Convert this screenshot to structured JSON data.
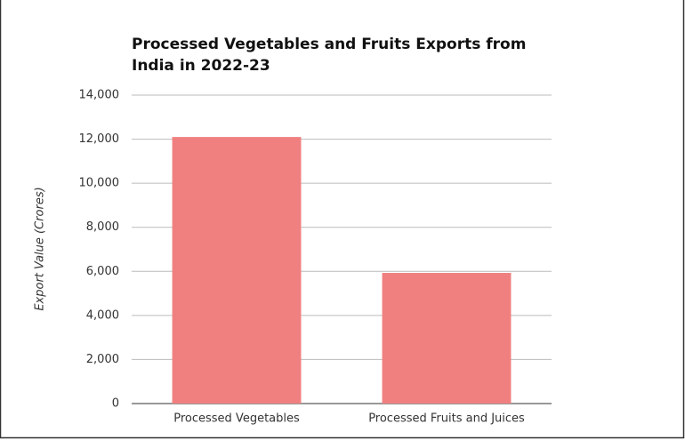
{
  "chart_data": {
    "type": "bar",
    "title": "Processed Vegetables and Fruits Exports from India in 2022-23",
    "y_label": "Export Value (Crores)",
    "categories": [
      "Processed Vegetables",
      "Processed Fruits and Juices"
    ],
    "values": [
      12100,
      5930
    ],
    "color": "#f08080",
    "ylim": [
      0,
      14000
    ],
    "yticks": [
      0,
      {
        "value": 2000,
        "label": "2,000"
      },
      {
        "value": 4000,
        "label": "4,000"
      },
      {
        "value": 6000,
        "label": "6,000"
      },
      {
        "value": 8000,
        "label": "8,000"
      },
      {
        "value": 10000,
        "label": "10,000"
      },
      {
        "value": 12000,
        "label": "12,000"
      },
      {
        "value": 14000,
        "label": "14,000"
      }
    ],
    "grid": true
  }
}
